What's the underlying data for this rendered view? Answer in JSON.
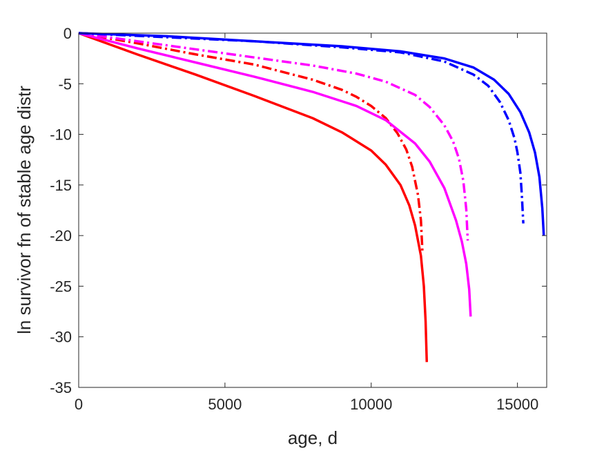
{
  "chart_data": {
    "type": "line",
    "title": "",
    "xlabel": "age, d",
    "ylabel": "ln survivor fn of stable age distr",
    "xlim": [
      0,
      16000
    ],
    "ylim": [
      -35,
      0
    ],
    "xticks": [
      0,
      5000,
      10000,
      15000
    ],
    "xtick_labels": [
      "0",
      "5000",
      "10000",
      "15000"
    ],
    "yticks": [
      0,
      -5,
      -10,
      -15,
      -20,
      -25,
      -30,
      -35
    ],
    "ytick_labels": [
      "0",
      "-5",
      "-10",
      "-15",
      "-20",
      "-25",
      "-30",
      "-35"
    ],
    "grid": false,
    "legend": "none",
    "series": [
      {
        "color": "#ff0000",
        "style": "solid",
        "x": [
          0,
          2000,
          4000,
          6000,
          8000,
          9000,
          10000,
          10500,
          11000,
          11300,
          11500,
          11700,
          11800,
          11860,
          11900
        ],
        "y": [
          0,
          -2.1,
          -4.1,
          -6.2,
          -8.4,
          -9.8,
          -11.6,
          -13.0,
          -15.0,
          -17.0,
          -19.0,
          -22.0,
          -25.0,
          -28.5,
          -32.5
        ]
      },
      {
        "color": "#ff0000",
        "style": "dashdot",
        "x": [
          0,
          2000,
          4000,
          6000,
          8000,
          9000,
          9500,
          10000,
          10500,
          10900,
          11200,
          11400,
          11600,
          11700,
          11750
        ],
        "y": [
          0,
          -1.0,
          -2.1,
          -3.1,
          -4.6,
          -5.6,
          -6.3,
          -7.2,
          -8.4,
          -9.9,
          -11.5,
          -13.2,
          -16.0,
          -18.5,
          -21.5
        ]
      },
      {
        "color": "#ff00ff",
        "style": "solid",
        "x": [
          0,
          2000,
          4000,
          6000,
          8000,
          9500,
          10500,
          11500,
          12000,
          12500,
          12900,
          13100,
          13250,
          13350,
          13400
        ],
        "y": [
          0,
          -1.5,
          -2.9,
          -4.3,
          -5.8,
          -7.2,
          -8.6,
          -10.9,
          -12.7,
          -15.3,
          -18.5,
          -20.6,
          -22.8,
          -25.3,
          -28.0
        ]
      },
      {
        "color": "#ff00ff",
        "style": "dashdot",
        "x": [
          0,
          2000,
          4000,
          6000,
          8000,
          9500,
          10500,
          11500,
          12000,
          12500,
          12800,
          13000,
          13150,
          13250,
          13300
        ],
        "y": [
          0,
          -0.8,
          -1.6,
          -2.4,
          -3.2,
          -4.0,
          -4.8,
          -6.1,
          -7.3,
          -9.1,
          -10.7,
          -12.4,
          -14.6,
          -17.4,
          -20.5
        ]
      },
      {
        "color": "#0000ff",
        "style": "solid",
        "x": [
          0,
          3000,
          6000,
          9000,
          11000,
          12500,
          13500,
          14200,
          14700,
          15100,
          15400,
          15600,
          15750,
          15850,
          15900
        ],
        "y": [
          0,
          -0.3,
          -0.8,
          -1.3,
          -1.8,
          -2.5,
          -3.4,
          -4.6,
          -6.0,
          -7.8,
          -9.8,
          -11.8,
          -14.2,
          -17.3,
          -20.0
        ]
      },
      {
        "color": "#0000ff",
        "style": "dashdot",
        "x": [
          0,
          3000,
          6000,
          9000,
          11000,
          12500,
          13500,
          14000,
          14400,
          14700,
          14900,
          15000,
          15100,
          15150,
          15200
        ],
        "y": [
          0,
          -0.4,
          -0.8,
          -1.4,
          -1.9,
          -2.8,
          -4.1,
          -5.2,
          -6.8,
          -8.6,
          -10.4,
          -11.8,
          -13.8,
          -16.0,
          -18.8
        ]
      }
    ]
  }
}
